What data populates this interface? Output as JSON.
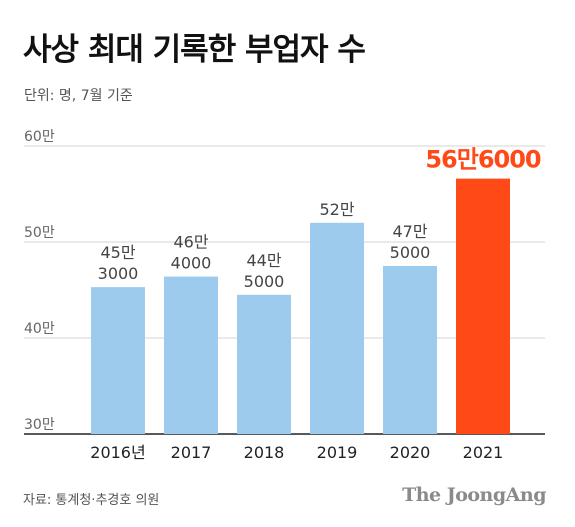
{
  "header": {
    "title": "사상 최대 기록한 부업자 수",
    "unit": "단위: 명, 7월 기준"
  },
  "footer": {
    "source": "자료: 통계청·추경호 의원",
    "logo": "The JoongAng"
  },
  "chart_data": {
    "type": "bar",
    "title": "사상 최대 기록한 부업자 수",
    "subtitle": "단위: 명, 7월 기준",
    "categories": [
      "2016년",
      "2017",
      "2018",
      "2019",
      "2020",
      "2021"
    ],
    "values": [
      453000,
      464000,
      445000,
      520000,
      475000,
      566000
    ],
    "value_labels": [
      [
        "45만",
        "3000"
      ],
      [
        "46만",
        "4000"
      ],
      [
        "44만",
        "5000"
      ],
      [
        "52만",
        ""
      ],
      [
        "47만",
        "5000"
      ],
      [
        "56만6000",
        ""
      ]
    ],
    "ylim": [
      300000,
      600000
    ],
    "yticks": [
      300000,
      400000,
      500000,
      600000
    ],
    "ytick_labels": [
      "30만",
      "40만",
      "50만",
      "60만"
    ],
    "grid": true,
    "colors": {
      "bar": "#9dcbed",
      "highlight": "#ff4a17",
      "grid": "#d6d6d6",
      "axis": "#222222",
      "label": "#444444"
    },
    "highlight_index": 5
  }
}
